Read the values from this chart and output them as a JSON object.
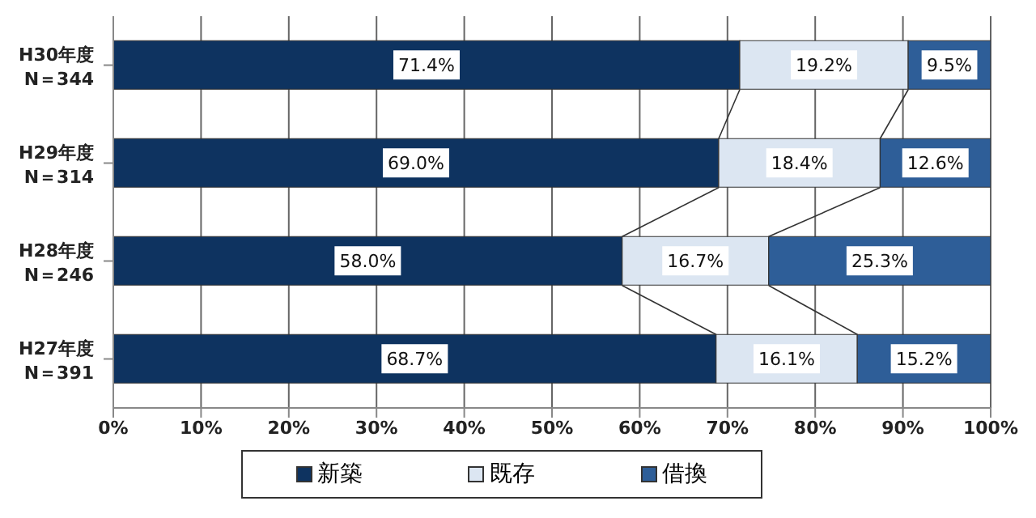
{
  "chart_data": {
    "type": "bar",
    "orientation": "horizontal",
    "stacked": true,
    "categories": [
      "H30年度\nN＝344",
      "H29年度\nN＝314",
      "H28年度\nN＝246",
      "H27年度\nN＝391"
    ],
    "series": [
      {
        "name": "新築",
        "color": "#0e3360",
        "values": [
          71.4,
          69.0,
          58.0,
          68.7
        ],
        "value_labels": [
          "71.4%",
          "69.0%",
          "58.0%",
          "68.7%"
        ]
      },
      {
        "name": "既存",
        "color": "#dce6f2",
        "values": [
          19.2,
          18.4,
          16.7,
          16.1
        ],
        "value_labels": [
          "19.2%",
          "18.4%",
          "16.7%",
          "16.1%"
        ]
      },
      {
        "name": "借換",
        "color": "#2e5e98",
        "values": [
          9.5,
          12.6,
          25.3,
          15.2
        ],
        "value_labels": [
          "9.5%",
          "12.6%",
          "25.3%",
          "15.2%"
        ]
      }
    ],
    "xlim": [
      0,
      100
    ],
    "xticks": [
      {
        "value": 0,
        "label": "0%"
      },
      {
        "value": 10,
        "label": "10%"
      },
      {
        "value": 20,
        "label": "20%"
      },
      {
        "value": 30,
        "label": "30%"
      },
      {
        "value": 40,
        "label": "40%"
      },
      {
        "value": 50,
        "label": "50%"
      },
      {
        "value": 60,
        "label": "60%"
      },
      {
        "value": 70,
        "label": "70%"
      },
      {
        "value": 80,
        "label": "80%"
      },
      {
        "value": 90,
        "label": "90%"
      },
      {
        "value": 100,
        "label": "100%"
      }
    ],
    "grid": "x",
    "legend": "bottom"
  }
}
